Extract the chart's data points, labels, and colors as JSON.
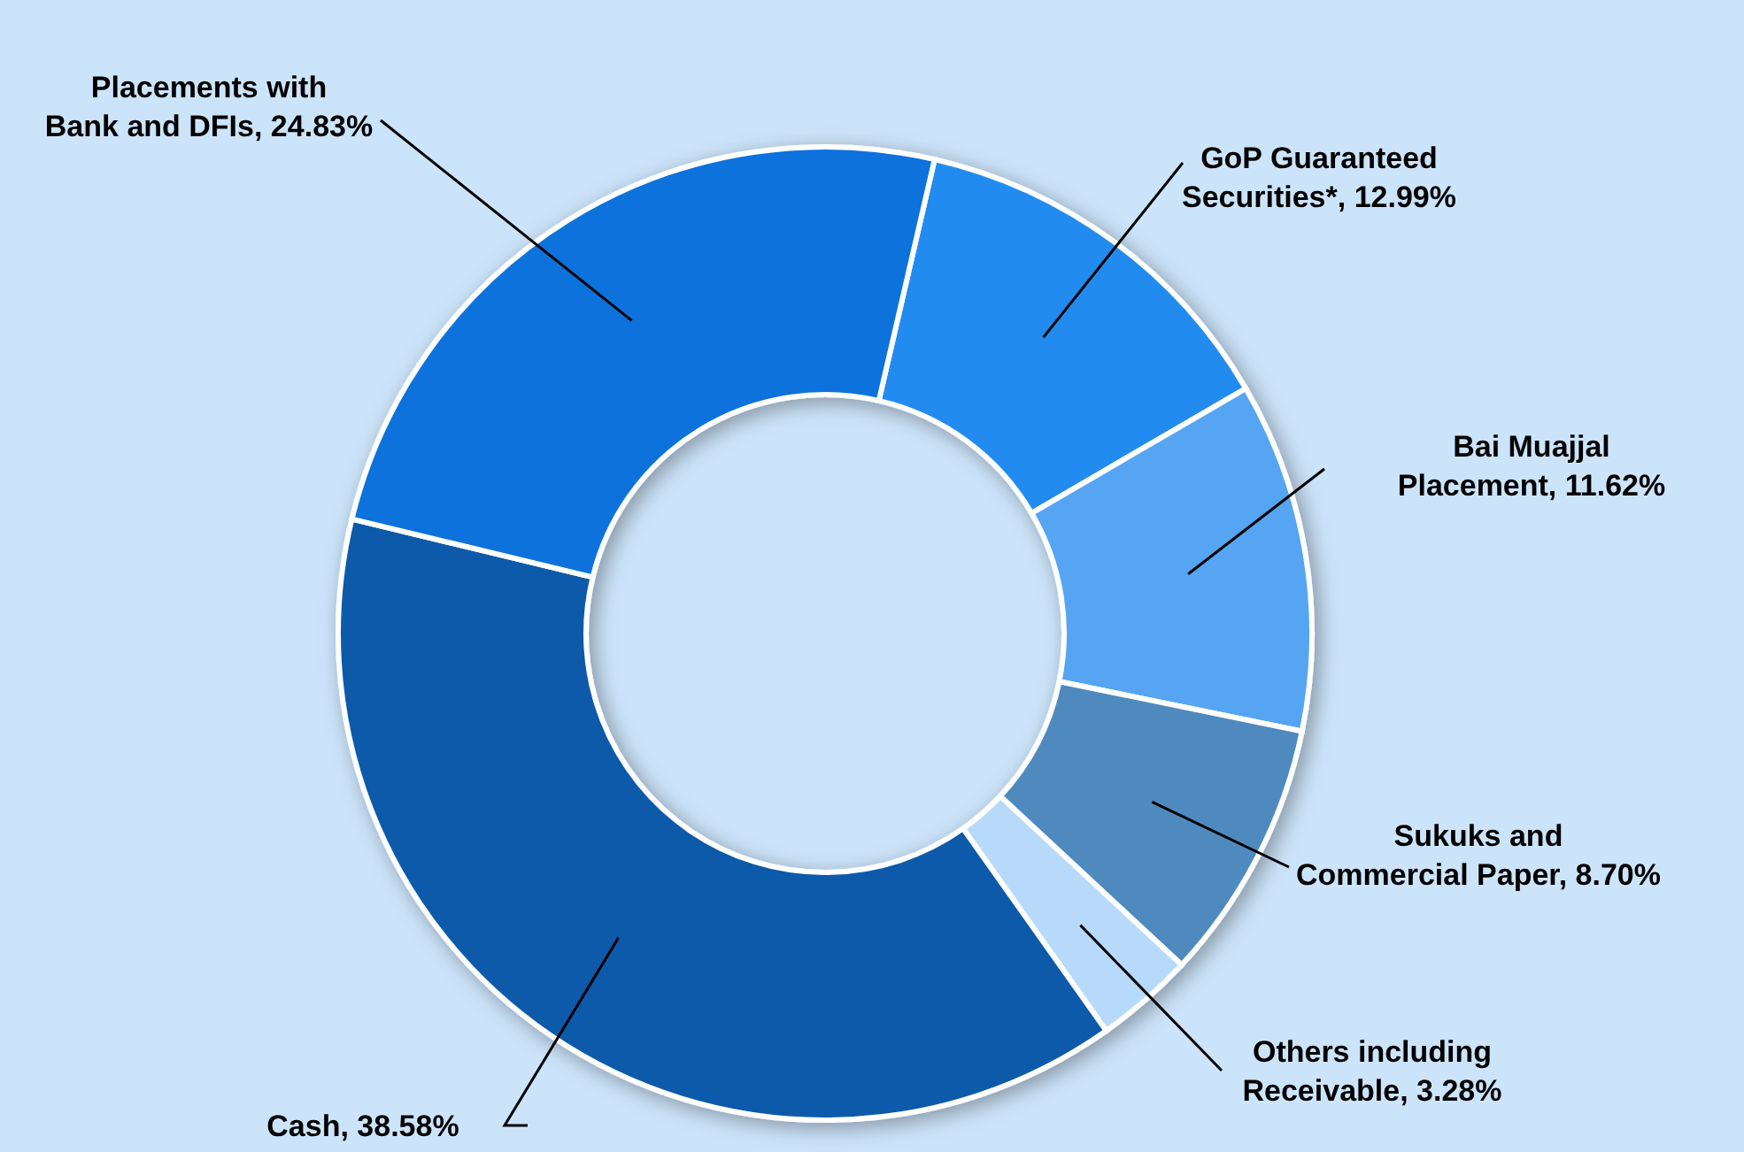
{
  "chart_data": {
    "type": "donut",
    "categories": [
      "GoP Guaranteed Securities*",
      "Bai Muajjal Placement",
      "Sukuks and Commercial Paper",
      "Others including Receivable",
      "Cash",
      "Placements with Bank and DFIs"
    ],
    "values": [
      12.99,
      11.62,
      8.7,
      3.28,
      38.58,
      24.83
    ],
    "value_labels": [
      "12.99%",
      "11.62%",
      "8.70%",
      "3.28%",
      "38.58%",
      "24.83%"
    ],
    "colors": [
      "#238bf0",
      "#55a5f2",
      "#4f8abf",
      "#b8dafa",
      "#0a5aab",
      "#0b72dc"
    ]
  }
}
